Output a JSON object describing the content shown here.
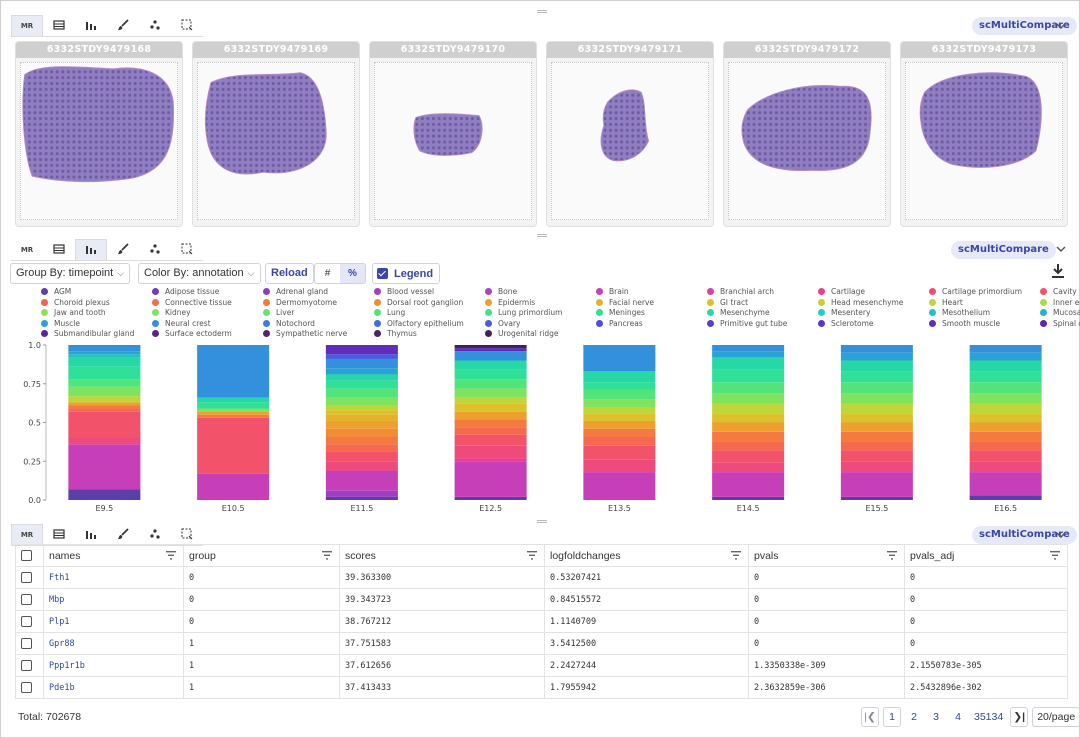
{
  "colors": {
    "accent": "#3a47a8",
    "link": "#2d48a3"
  },
  "toolbars": {
    "mr_label": "MR",
    "icons": [
      "mr-icon",
      "slide-scanner-icon",
      "bar-chart-icon",
      "brush-icon",
      "scatter-icon",
      "selection-icon"
    ],
    "app_label": "scMultiCompare"
  },
  "slides": [
    {
      "id": "6332STDY9479168"
    },
    {
      "id": "6332STDY9479169"
    },
    {
      "id": "6332STDY9479170"
    },
    {
      "id": "6332STDY9479171"
    },
    {
      "id": "6332STDY9479172"
    },
    {
      "id": "6332STDY9479173"
    }
  ],
  "controls": {
    "group_by": "Group By: timepoint",
    "color_by": "Color By: annotation",
    "reload": "Reload",
    "count_toggle": "#",
    "percent_toggle": "%",
    "legend_label": "Legend"
  },
  "chart_data": {
    "type": "bar",
    "stacked": true,
    "normalized": true,
    "categories": [
      "E9.5",
      "E10.5",
      "E11.5",
      "E12.5",
      "E13.5",
      "E14.5",
      "E15.5",
      "E16.5"
    ],
    "ylim": [
      0,
      1
    ],
    "yticks": [
      "0.0",
      "0.25",
      "0.5",
      "0.75",
      "1.0"
    ],
    "xlabel": "",
    "ylabel": "",
    "legend": [
      {
        "name": "AGM",
        "color": "#5a3fa8"
      },
      {
        "name": "Adipose tissue",
        "color": "#6d3fb3"
      },
      {
        "name": "Adrenal gland",
        "color": "#8a3fbf"
      },
      {
        "name": "Blood vessel",
        "color": "#9d3fc6"
      },
      {
        "name": "Bone",
        "color": "#b03fc6"
      },
      {
        "name": "Brain",
        "color": "#c73fb8"
      },
      {
        "name": "Branchial arch",
        "color": "#d93fa6"
      },
      {
        "name": "Cartilage",
        "color": "#e83f8f"
      },
      {
        "name": "Cartilage primordium",
        "color": "#ef4a7c"
      },
      {
        "name": "Cavity",
        "color": "#f2536b"
      },
      {
        "name": "Choroid plexus",
        "color": "#f55d5d"
      },
      {
        "name": "Connective tissue",
        "color": "#f56a4e"
      },
      {
        "name": "Dermomyotome",
        "color": "#f47a3f"
      },
      {
        "name": "Dorsal root ganglion",
        "color": "#f18d35"
      },
      {
        "name": "Epidermis",
        "color": "#eda02d"
      },
      {
        "name": "Facial nerve",
        "color": "#e6b22a"
      },
      {
        "name": "GI tract",
        "color": "#dcc12a"
      },
      {
        "name": "Head mesenchyme",
        "color": "#cfcd30"
      },
      {
        "name": "Heart",
        "color": "#bed63a"
      },
      {
        "name": "Inner ear",
        "color": "#aadc45"
      },
      {
        "name": "Jaw and tooth",
        "color": "#95e052"
      },
      {
        "name": "Kidney",
        "color": "#7fe35f"
      },
      {
        "name": "Liver",
        "color": "#68e46c"
      },
      {
        "name": "Lung",
        "color": "#52e47a"
      },
      {
        "name": "Lung primordium",
        "color": "#3fe389"
      },
      {
        "name": "Meninges",
        "color": "#30df98"
      },
      {
        "name": "Mesenchyme",
        "color": "#27d8a7"
      },
      {
        "name": "Mesentery",
        "color": "#22ceb5"
      },
      {
        "name": "Mesothelium",
        "color": "#22c2c1"
      },
      {
        "name": "Mucosal epithelium",
        "color": "#25b3cb"
      },
      {
        "name": "Muscle",
        "color": "#2ba2d4"
      },
      {
        "name": "Neural crest",
        "color": "#3290dc"
      },
      {
        "name": "Notochord",
        "color": "#3a7ee0"
      },
      {
        "name": "Olfactory epithelium",
        "color": "#426ce2"
      },
      {
        "name": "Ovary",
        "color": "#4a5be0"
      },
      {
        "name": "Pancreas",
        "color": "#514cdc"
      },
      {
        "name": "Primitive gut tube",
        "color": "#573fd4"
      },
      {
        "name": "Sclerotome",
        "color": "#5c35c8"
      },
      {
        "name": "Smooth muscle",
        "color": "#5f2dba"
      },
      {
        "name": "Spinal cord",
        "color": "#6028a8"
      },
      {
        "name": "Submandibular gland",
        "color": "#5e2598"
      },
      {
        "name": "Surface ectoderm",
        "color": "#5a2388"
      },
      {
        "name": "Sympathetic nerve",
        "color": "#552178"
      },
      {
        "name": "Thymus",
        "color": "#4f2068"
      },
      {
        "name": "Urogenital ridge",
        "color": "#481e5a"
      }
    ],
    "series": [
      {
        "category": "E9.5",
        "segments": [
          {
            "name": "AGM",
            "value": 0.07
          },
          {
            "name": "Brain",
            "value": 0.29
          },
          {
            "name": "Cartilage primordium",
            "value": 0.04
          },
          {
            "name": "Cavity",
            "value": 0.17
          },
          {
            "name": "Connective tissue",
            "value": 0.02
          },
          {
            "name": "Dermomyotome",
            "value": 0.02
          },
          {
            "name": "Epidermis",
            "value": 0.02
          },
          {
            "name": "Heart",
            "value": 0.04
          },
          {
            "name": "Kidney",
            "value": 0.06
          },
          {
            "name": "Lung",
            "value": 0.05
          },
          {
            "name": "Meninges",
            "value": 0.08
          },
          {
            "name": "Mesenchyme",
            "value": 0.06
          },
          {
            "name": "Mesothelium",
            "value": 0.02
          },
          {
            "name": "Muscle",
            "value": 0.02
          },
          {
            "name": "Neural crest",
            "value": 0.04
          }
        ]
      },
      {
        "category": "E10.5",
        "segments": [
          {
            "name": "Brain",
            "value": 0.17
          },
          {
            "name": "Cavity",
            "value": 0.36
          },
          {
            "name": "Dermomyotome",
            "value": 0.02
          },
          {
            "name": "Epidermis",
            "value": 0.02
          },
          {
            "name": "Kidney",
            "value": 0.02
          },
          {
            "name": "Meninges",
            "value": 0.04
          },
          {
            "name": "Mesenchyme",
            "value": 0.03
          },
          {
            "name": "Neural crest",
            "value": 0.34
          }
        ]
      },
      {
        "category": "E11.5",
        "segments": [
          {
            "name": "AGM",
            "value": 0.02
          },
          {
            "name": "Blood vessel",
            "value": 0.04
          },
          {
            "name": "Brain",
            "value": 0.13
          },
          {
            "name": "Cartilage primordium",
            "value": 0.06
          },
          {
            "name": "Cavity",
            "value": 0.06
          },
          {
            "name": "Connective tissue",
            "value": 0.05
          },
          {
            "name": "Dermomyotome",
            "value": 0.05
          },
          {
            "name": "Dorsal root ganglion",
            "value": 0.05
          },
          {
            "name": "Epidermis",
            "value": 0.05
          },
          {
            "name": "Facial nerve",
            "value": 0.04
          },
          {
            "name": "GI tract",
            "value": 0.03
          },
          {
            "name": "Heart",
            "value": 0.03
          },
          {
            "name": "Kidney",
            "value": 0.05
          },
          {
            "name": "Lung",
            "value": 0.06
          },
          {
            "name": "Meninges",
            "value": 0.05
          },
          {
            "name": "Mesenchyme",
            "value": 0.04
          },
          {
            "name": "Muscle",
            "value": 0.04
          },
          {
            "name": "Neural crest",
            "value": 0.06
          },
          {
            "name": "Ovary",
            "value": 0.03
          },
          {
            "name": "Smooth muscle",
            "value": 0.06
          }
        ]
      },
      {
        "category": "E12.5",
        "segments": [
          {
            "name": "AGM",
            "value": 0.02
          },
          {
            "name": "Brain",
            "value": 0.23
          },
          {
            "name": "Cartilage",
            "value": 0.02
          },
          {
            "name": "Cartilage primordium",
            "value": 0.08
          },
          {
            "name": "Cavity",
            "value": 0.07
          },
          {
            "name": "Connective tissue",
            "value": 0.05
          },
          {
            "name": "Dermomyotome",
            "value": 0.05
          },
          {
            "name": "Epidermis",
            "value": 0.05
          },
          {
            "name": "GI tract",
            "value": 0.05
          },
          {
            "name": "Heart",
            "value": 0.04
          },
          {
            "name": "Kidney",
            "value": 0.06
          },
          {
            "name": "Lung",
            "value": 0.06
          },
          {
            "name": "Meninges",
            "value": 0.06
          },
          {
            "name": "Mesenchyme",
            "value": 0.06
          },
          {
            "name": "Neural crest",
            "value": 0.06
          },
          {
            "name": "Smooth muscle",
            "value": 0.02
          },
          {
            "name": "Urogenital ridge",
            "value": 0.02
          }
        ]
      },
      {
        "category": "E13.5",
        "segments": [
          {
            "name": "Brain",
            "value": 0.18
          },
          {
            "name": "Cartilage primordium",
            "value": 0.08
          },
          {
            "name": "Cavity",
            "value": 0.09
          },
          {
            "name": "Connective tissue",
            "value": 0.06
          },
          {
            "name": "Dermomyotome",
            "value": 0.05
          },
          {
            "name": "Epidermis",
            "value": 0.05
          },
          {
            "name": "GI tract",
            "value": 0.05
          },
          {
            "name": "Heart",
            "value": 0.04
          },
          {
            "name": "Kidney",
            "value": 0.05
          },
          {
            "name": "Lung",
            "value": 0.06
          },
          {
            "name": "Meninges",
            "value": 0.05
          },
          {
            "name": "Mesenchyme",
            "value": 0.07
          },
          {
            "name": "Neural crest",
            "value": 0.17
          }
        ]
      },
      {
        "category": "E14.5",
        "segments": [
          {
            "name": "AGM",
            "value": 0.02
          },
          {
            "name": "Brain",
            "value": 0.16
          },
          {
            "name": "Cartilage primordium",
            "value": 0.06
          },
          {
            "name": "Cavity",
            "value": 0.08
          },
          {
            "name": "Connective tissue",
            "value": 0.06
          },
          {
            "name": "Dermomyotome",
            "value": 0.06
          },
          {
            "name": "Epidermis",
            "value": 0.06
          },
          {
            "name": "GI tract",
            "value": 0.06
          },
          {
            "name": "Heart",
            "value": 0.06
          },
          {
            "name": "Kidney",
            "value": 0.07
          },
          {
            "name": "Lung",
            "value": 0.07
          },
          {
            "name": "Meninges",
            "value": 0.08
          },
          {
            "name": "Mesenchyme",
            "value": 0.08
          },
          {
            "name": "Muscle",
            "value": 0.04
          },
          {
            "name": "Neural crest",
            "value": 0.04
          }
        ]
      },
      {
        "category": "E15.5",
        "segments": [
          {
            "name": "AGM",
            "value": 0.02
          },
          {
            "name": "Brain",
            "value": 0.16
          },
          {
            "name": "Cartilage primordium",
            "value": 0.07
          },
          {
            "name": "Cavity",
            "value": 0.07
          },
          {
            "name": "Connective tissue",
            "value": 0.06
          },
          {
            "name": "Dermomyotome",
            "value": 0.06
          },
          {
            "name": "Epidermis",
            "value": 0.06
          },
          {
            "name": "GI tract",
            "value": 0.06
          },
          {
            "name": "Heart",
            "value": 0.06
          },
          {
            "name": "Kidney",
            "value": 0.07
          },
          {
            "name": "Lung",
            "value": 0.07
          },
          {
            "name": "Meninges",
            "value": 0.07
          },
          {
            "name": "Mesenchyme",
            "value": 0.07
          },
          {
            "name": "Muscle",
            "value": 0.05
          },
          {
            "name": "Neural crest",
            "value": 0.05
          }
        ]
      },
      {
        "category": "E16.5",
        "segments": [
          {
            "name": "AGM",
            "value": 0.03
          },
          {
            "name": "Brain",
            "value": 0.15
          },
          {
            "name": "Cartilage primordium",
            "value": 0.07
          },
          {
            "name": "Cavity",
            "value": 0.07
          },
          {
            "name": "Connective tissue",
            "value": 0.06
          },
          {
            "name": "Dermomyotome",
            "value": 0.06
          },
          {
            "name": "Epidermis",
            "value": 0.06
          },
          {
            "name": "GI tract",
            "value": 0.06
          },
          {
            "name": "Heart",
            "value": 0.06
          },
          {
            "name": "Kidney",
            "value": 0.07
          },
          {
            "name": "Lung",
            "value": 0.07
          },
          {
            "name": "Meninges",
            "value": 0.07
          },
          {
            "name": "Mesenchyme",
            "value": 0.07
          },
          {
            "name": "Muscle",
            "value": 0.05
          },
          {
            "name": "Neural crest",
            "value": 0.05
          }
        ]
      }
    ]
  },
  "table": {
    "columns": [
      "names",
      "group",
      "scores",
      "logfoldchanges",
      "pvals",
      "pvals_adj"
    ],
    "rows": [
      [
        "Fth1",
        "0",
        "39.363300",
        "0.53207421",
        "0",
        "0"
      ],
      [
        "Mbp",
        "0",
        "39.343723",
        "0.84515572",
        "0",
        "0"
      ],
      [
        "Plp1",
        "0",
        "38.767212",
        "1.1140709",
        "0",
        "0"
      ],
      [
        "Gpr88",
        "1",
        "37.751583",
        "3.5412500",
        "0",
        "0"
      ],
      [
        "Ppp1r1b",
        "1",
        "37.612656",
        "2.2427244",
        "1.3350338e-309",
        "2.1550783e-305"
      ],
      [
        "Pde1b",
        "1",
        "37.413433",
        "1.7955942",
        "2.3632859e-306",
        "2.5432896e-302"
      ]
    ]
  },
  "footer": {
    "total": "Total: 702678",
    "pages": [
      "1",
      "2",
      "3",
      "4",
      "35134"
    ],
    "page_size": "20/page"
  }
}
